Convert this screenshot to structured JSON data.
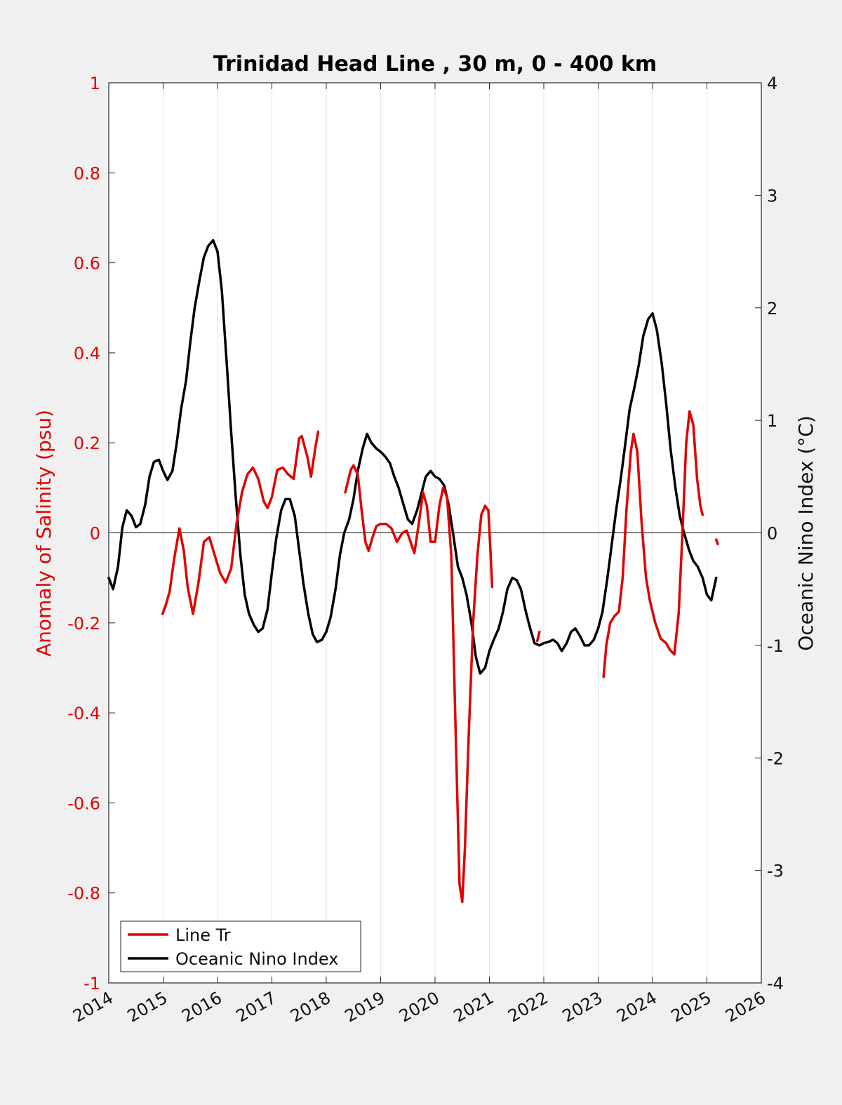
{
  "chart_data": {
    "type": "line",
    "title": "Trinidad Head Line , 30 m, 0 - 400 km",
    "xlabel": "",
    "ylabel_left": "Anomaly of Salinity (psu)",
    "ylabel_right": "Oceanic Nino Index (°C)",
    "xlim": [
      2014,
      2026
    ],
    "ylim_left": [
      -1,
      1
    ],
    "ylim_right": [
      -4,
      4
    ],
    "x_ticks": [
      "2014",
      "2015",
      "2016",
      "2017",
      "2018",
      "2019",
      "2020",
      "2021",
      "2022",
      "2023",
      "2024",
      "2025",
      "2026"
    ],
    "y_ticks_left": [
      "1",
      "0.8",
      "0.6",
      "0.4",
      "0.2",
      "0",
      "-0.2",
      "-0.4",
      "-0.6",
      "-0.8",
      "-1"
    ],
    "y_ticks_right": [
      "4",
      "3",
      "2",
      "1",
      "0",
      "-1",
      "-2",
      "-3",
      "-4"
    ],
    "grid": "vertical",
    "legend_position": "bottom-left",
    "colors": {
      "salinity": "#e00000",
      "oni": "#000000",
      "background": "#f0f0f0",
      "axes": "#ffffff"
    },
    "series": [
      {
        "name": "Line Tr",
        "axis": "left",
        "segments": [
          [
            [
              2014.99,
              -0.18
            ],
            [
              2015.05,
              -0.16
            ],
            [
              2015.12,
              -0.13
            ],
            [
              2015.2,
              -0.06
            ],
            [
              2015.3,
              0.01
            ],
            [
              2015.38,
              -0.04
            ],
            [
              2015.45,
              -0.12
            ],
            [
              2015.55,
              -0.18
            ],
            [
              2015.65,
              -0.11
            ],
            [
              2015.75,
              -0.02
            ],
            [
              2015.85,
              -0.01
            ],
            [
              2015.95,
              -0.05
            ],
            [
              2016.05,
              -0.09
            ],
            [
              2016.15,
              -0.11
            ],
            [
              2016.25,
              -0.08
            ],
            [
              2016.35,
              0.02
            ],
            [
              2016.45,
              0.09
            ],
            [
              2016.55,
              0.13
            ],
            [
              2016.65,
              0.145
            ],
            [
              2016.75,
              0.12
            ],
            [
              2016.85,
              0.07
            ],
            [
              2016.92,
              0.055
            ],
            [
              2017.0,
              0.08
            ],
            [
              2017.1,
              0.14
            ],
            [
              2017.2,
              0.145
            ],
            [
              2017.3,
              0.13
            ],
            [
              2017.4,
              0.12
            ],
            [
              2017.5,
              0.21
            ],
            [
              2017.55,
              0.215
            ],
            [
              2017.65,
              0.17
            ],
            [
              2017.72,
              0.125
            ],
            [
              2017.8,
              0.19
            ],
            [
              2017.85,
              0.225
            ]
          ],
          [
            [
              2018.35,
              0.09
            ],
            [
              2018.45,
              0.14
            ],
            [
              2018.5,
              0.15
            ],
            [
              2018.58,
              0.13
            ],
            [
              2018.65,
              0.05
            ],
            [
              2018.72,
              -0.02
            ],
            [
              2018.78,
              -0.04
            ],
            [
              2018.85,
              -0.01
            ],
            [
              2018.92,
              0.015
            ],
            [
              2019.0,
              0.02
            ],
            [
              2019.1,
              0.02
            ],
            [
              2019.2,
              0.01
            ],
            [
              2019.3,
              -0.02
            ],
            [
              2019.4,
              0.0
            ],
            [
              2019.48,
              0.005
            ],
            [
              2019.55,
              -0.02
            ],
            [
              2019.62,
              -0.045
            ],
            [
              2019.7,
              0.02
            ],
            [
              2019.78,
              0.09
            ],
            [
              2019.85,
              0.06
            ],
            [
              2019.92,
              -0.02
            ],
            [
              2020.0,
              -0.02
            ],
            [
              2020.08,
              0.06
            ],
            [
              2020.15,
              0.1
            ],
            [
              2020.22,
              0.08
            ],
            [
              2020.3,
              -0.05
            ],
            [
              2020.38,
              -0.45
            ],
            [
              2020.45,
              -0.78
            ],
            [
              2020.5,
              -0.82
            ],
            [
              2020.55,
              -0.7
            ],
            [
              2020.62,
              -0.45
            ],
            [
              2020.7,
              -0.2
            ],
            [
              2020.78,
              -0.05
            ],
            [
              2020.85,
              0.04
            ],
            [
              2020.92,
              0.06
            ],
            [
              2020.98,
              0.05
            ],
            [
              2021.02,
              -0.04
            ],
            [
              2021.05,
              -0.12
            ]
          ],
          [
            [
              2021.88,
              -0.24
            ],
            [
              2021.92,
              -0.22
            ]
          ],
          [
            [
              2023.1,
              -0.32
            ],
            [
              2023.15,
              -0.25
            ],
            [
              2023.22,
              -0.2
            ],
            [
              2023.3,
              -0.185
            ],
            [
              2023.38,
              -0.175
            ],
            [
              2023.45,
              -0.1
            ],
            [
              2023.52,
              0.05
            ],
            [
              2023.6,
              0.18
            ],
            [
              2023.65,
              0.22
            ],
            [
              2023.72,
              0.18
            ],
            [
              2023.8,
              0.02
            ],
            [
              2023.88,
              -0.1
            ],
            [
              2023.95,
              -0.15
            ],
            [
              2024.05,
              -0.2
            ],
            [
              2024.15,
              -0.235
            ],
            [
              2024.25,
              -0.245
            ],
            [
              2024.32,
              -0.26
            ],
            [
              2024.4,
              -0.27
            ],
            [
              2024.48,
              -0.18
            ],
            [
              2024.55,
              0.0
            ],
            [
              2024.62,
              0.2
            ],
            [
              2024.68,
              0.27
            ],
            [
              2024.75,
              0.24
            ],
            [
              2024.82,
              0.12
            ],
            [
              2024.88,
              0.06
            ],
            [
              2024.92,
              0.04
            ]
          ],
          [
            [
              2025.17,
              -0.015
            ],
            [
              2025.2,
              -0.025
            ]
          ]
        ]
      },
      {
        "name": "Oceanic Nino Index",
        "axis": "right",
        "points": [
          [
            2014.0,
            -0.4
          ],
          [
            2014.08,
            -0.5
          ],
          [
            2014.17,
            -0.3
          ],
          [
            2014.25,
            0.05
          ],
          [
            2014.33,
            0.2
          ],
          [
            2014.42,
            0.15
          ],
          [
            2014.5,
            0.05
          ],
          [
            2014.58,
            0.08
          ],
          [
            2014.67,
            0.25
          ],
          [
            2014.75,
            0.5
          ],
          [
            2014.83,
            0.63
          ],
          [
            2014.92,
            0.65
          ],
          [
            2015.0,
            0.55
          ],
          [
            2015.08,
            0.47
          ],
          [
            2015.17,
            0.55
          ],
          [
            2015.25,
            0.8
          ],
          [
            2015.33,
            1.1
          ],
          [
            2015.42,
            1.35
          ],
          [
            2015.5,
            1.7
          ],
          [
            2015.58,
            2.0
          ],
          [
            2015.67,
            2.25
          ],
          [
            2015.75,
            2.45
          ],
          [
            2015.83,
            2.55
          ],
          [
            2015.92,
            2.6
          ],
          [
            2016.0,
            2.5
          ],
          [
            2016.08,
            2.15
          ],
          [
            2016.17,
            1.5
          ],
          [
            2016.25,
            0.9
          ],
          [
            2016.33,
            0.35
          ],
          [
            2016.42,
            -0.2
          ],
          [
            2016.5,
            -0.55
          ],
          [
            2016.58,
            -0.72
          ],
          [
            2016.67,
            -0.82
          ],
          [
            2016.75,
            -0.88
          ],
          [
            2016.83,
            -0.85
          ],
          [
            2016.92,
            -0.68
          ],
          [
            2017.0,
            -0.35
          ],
          [
            2017.08,
            -0.05
          ],
          [
            2017.17,
            0.2
          ],
          [
            2017.25,
            0.3
          ],
          [
            2017.33,
            0.3
          ],
          [
            2017.42,
            0.15
          ],
          [
            2017.5,
            -0.15
          ],
          [
            2017.58,
            -0.45
          ],
          [
            2017.67,
            -0.72
          ],
          [
            2017.75,
            -0.9
          ],
          [
            2017.83,
            -0.97
          ],
          [
            2017.92,
            -0.95
          ],
          [
            2018.0,
            -0.88
          ],
          [
            2018.08,
            -0.75
          ],
          [
            2018.17,
            -0.5
          ],
          [
            2018.25,
            -0.2
          ],
          [
            2018.33,
            0.0
          ],
          [
            2018.42,
            0.12
          ],
          [
            2018.5,
            0.3
          ],
          [
            2018.58,
            0.55
          ],
          [
            2018.67,
            0.75
          ],
          [
            2018.75,
            0.88
          ],
          [
            2018.83,
            0.8
          ],
          [
            2018.92,
            0.75
          ],
          [
            2019.0,
            0.72
          ],
          [
            2019.08,
            0.68
          ],
          [
            2019.17,
            0.62
          ],
          [
            2019.25,
            0.5
          ],
          [
            2019.33,
            0.4
          ],
          [
            2019.42,
            0.25
          ],
          [
            2019.5,
            0.12
          ],
          [
            2019.58,
            0.08
          ],
          [
            2019.67,
            0.2
          ],
          [
            2019.75,
            0.35
          ],
          [
            2019.83,
            0.5
          ],
          [
            2019.92,
            0.55
          ],
          [
            2020.0,
            0.5
          ],
          [
            2020.08,
            0.48
          ],
          [
            2020.17,
            0.42
          ],
          [
            2020.25,
            0.25
          ],
          [
            2020.33,
            0.0
          ],
          [
            2020.42,
            -0.3
          ],
          [
            2020.5,
            -0.4
          ],
          [
            2020.58,
            -0.55
          ],
          [
            2020.67,
            -0.8
          ],
          [
            2020.75,
            -1.1
          ],
          [
            2020.83,
            -1.25
          ],
          [
            2020.92,
            -1.2
          ],
          [
            2021.0,
            -1.05
          ],
          [
            2021.08,
            -0.95
          ],
          [
            2021.17,
            -0.85
          ],
          [
            2021.25,
            -0.7
          ],
          [
            2021.33,
            -0.5
          ],
          [
            2021.42,
            -0.4
          ],
          [
            2021.5,
            -0.42
          ],
          [
            2021.58,
            -0.5
          ],
          [
            2021.67,
            -0.7
          ],
          [
            2021.75,
            -0.85
          ],
          [
            2021.83,
            -0.98
          ],
          [
            2021.92,
            -1.0
          ],
          [
            2022.0,
            -0.98
          ],
          [
            2022.08,
            -0.97
          ],
          [
            2022.17,
            -0.95
          ],
          [
            2022.25,
            -0.98
          ],
          [
            2022.33,
            -1.05
          ],
          [
            2022.42,
            -0.98
          ],
          [
            2022.5,
            -0.88
          ],
          [
            2022.58,
            -0.85
          ],
          [
            2022.67,
            -0.92
          ],
          [
            2022.75,
            -1.0
          ],
          [
            2022.83,
            -1.0
          ],
          [
            2022.92,
            -0.95
          ],
          [
            2023.0,
            -0.85
          ],
          [
            2023.08,
            -0.7
          ],
          [
            2023.17,
            -0.4
          ],
          [
            2023.25,
            -0.1
          ],
          [
            2023.33,
            0.2
          ],
          [
            2023.42,
            0.5
          ],
          [
            2023.5,
            0.8
          ],
          [
            2023.58,
            1.1
          ],
          [
            2023.67,
            1.3
          ],
          [
            2023.75,
            1.5
          ],
          [
            2023.83,
            1.75
          ],
          [
            2023.92,
            1.9
          ],
          [
            2024.0,
            1.95
          ],
          [
            2024.08,
            1.8
          ],
          [
            2024.17,
            1.5
          ],
          [
            2024.25,
            1.15
          ],
          [
            2024.33,
            0.75
          ],
          [
            2024.42,
            0.4
          ],
          [
            2024.5,
            0.15
          ],
          [
            2024.58,
            0.0
          ],
          [
            2024.67,
            -0.15
          ],
          [
            2024.75,
            -0.25
          ],
          [
            2024.83,
            -0.3
          ],
          [
            2024.92,
            -0.4
          ],
          [
            2025.0,
            -0.55
          ],
          [
            2025.08,
            -0.6
          ],
          [
            2025.17,
            -0.4
          ]
        ]
      }
    ]
  }
}
